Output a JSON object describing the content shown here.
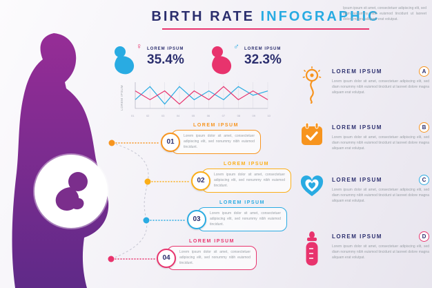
{
  "page": {
    "title_part1": "BIRTH RATE",
    "title_part2": "INFOGRAPHIC"
  },
  "intro_text": "Ipsum ipsum sit amet, consectetuer adipiscing elit, sed diam nonummy nibh euismod tincidunt ut laoreet dolore magna aliquam erat volutpat.",
  "colors": {
    "navy": "#2b2e6e",
    "orange": "#f7941e",
    "yellow": "#fbae17",
    "blue": "#29abe2",
    "pink": "#e8336d",
    "purple": "#7b2e8c",
    "gray_text": "#9aa0a6"
  },
  "stats": [
    {
      "icon": "baby-girl-icon",
      "gender_symbol": "♀",
      "label": "LOREM IPSUM",
      "value": "35.4%",
      "icon_color": "#29abe2",
      "symbol_color": "#e8336d"
    },
    {
      "icon": "baby-boy-icon",
      "gender_symbol": "♂",
      "label": "LOREM IPSUM",
      "value": "32.3%",
      "icon_color": "#e8336d",
      "symbol_color": "#29abe2"
    }
  ],
  "chart_data": {
    "type": "line",
    "x": [
      "01",
      "02",
      "03",
      "04",
      "05",
      "06",
      "07",
      "08",
      "09",
      "10"
    ],
    "series": [
      {
        "name": "series-blue",
        "color": "#29abe2",
        "values": [
          2,
          5,
          1,
          5,
          2,
          4,
          2,
          5,
          3,
          4
        ]
      },
      {
        "name": "series-pink",
        "color": "#e8336d",
        "values": [
          4,
          2,
          4,
          1,
          4,
          2,
          5,
          2,
          4,
          2
        ]
      }
    ],
    "title": "",
    "xlabel": "",
    "ylabel": "LOREM IPSUM",
    "ylim": [
      0,
      6
    ],
    "grid": true,
    "legend": false
  },
  "timeline": [
    {
      "number": "01",
      "title": "LOREM IPSUM",
      "color": "#f7941e",
      "text": "Lorem ipsum dolor sit amet, consectetuer adipiscing elit, sed nonummy nibh euismod tincidunt."
    },
    {
      "number": "02",
      "title": "LOREM IPSUM",
      "color": "#fbae17",
      "text": "Lorem ipsum dolor sit amet, consectetuer adipiscing elit, sed nonummy nibh euismod tincidunt."
    },
    {
      "number": "03",
      "title": "LOREM IPSUM",
      "color": "#29abe2",
      "text": "Lorem ipsum dolor sit amet, consectetuer adipiscing elit, sed nonummy nibh euismod tincidunt."
    },
    {
      "number": "04",
      "title": "LOREM IPSUM",
      "color": "#e8336d",
      "text": "Lorem ipsum dolor sit amet, consectetuer adipiscing elit, sed nonummy nibh euismod tincidunt."
    }
  ],
  "right_items": [
    {
      "letter": "A",
      "title": "LOREM IPSUM",
      "icon": "fertility-icon",
      "color": "#f7941e",
      "text": "Lorem ipsum dolor sit amet, consectetuer adipiscing elit, sed diam nonummy nibh euismod tincidunt ut laoreet dolore magna aliquam erat volutpat."
    },
    {
      "letter": "B",
      "title": "LOREM IPSUM",
      "icon": "calendar-icon",
      "color": "#f7941e",
      "text": "Lorem ipsum dolor sit amet, consectetuer adipiscing elit, sed diam nonummy nibh euismod tincidunt ut laoreet dolore magna aliquam erat volutpat."
    },
    {
      "letter": "C",
      "title": "LOREM IPSUM",
      "icon": "heart-icon",
      "color": "#29abe2",
      "text": "Lorem ipsum dolor sit amet, consectetuer adipiscing elit, sed diam nonummy nibh euismod tincidunt ut laoreet dolore magna aliquam erat volutpat."
    },
    {
      "letter": "D",
      "title": "LOREM IPSUM",
      "icon": "baby-bottle-icon",
      "color": "#e8336d",
      "text": "Lorem ipsum dolor sit amet, consectetuer adipiscing elit, sed diam nonummy nibh euismod tincidunt ut laoreet dolore magna aliquam erat volutpat."
    }
  ]
}
